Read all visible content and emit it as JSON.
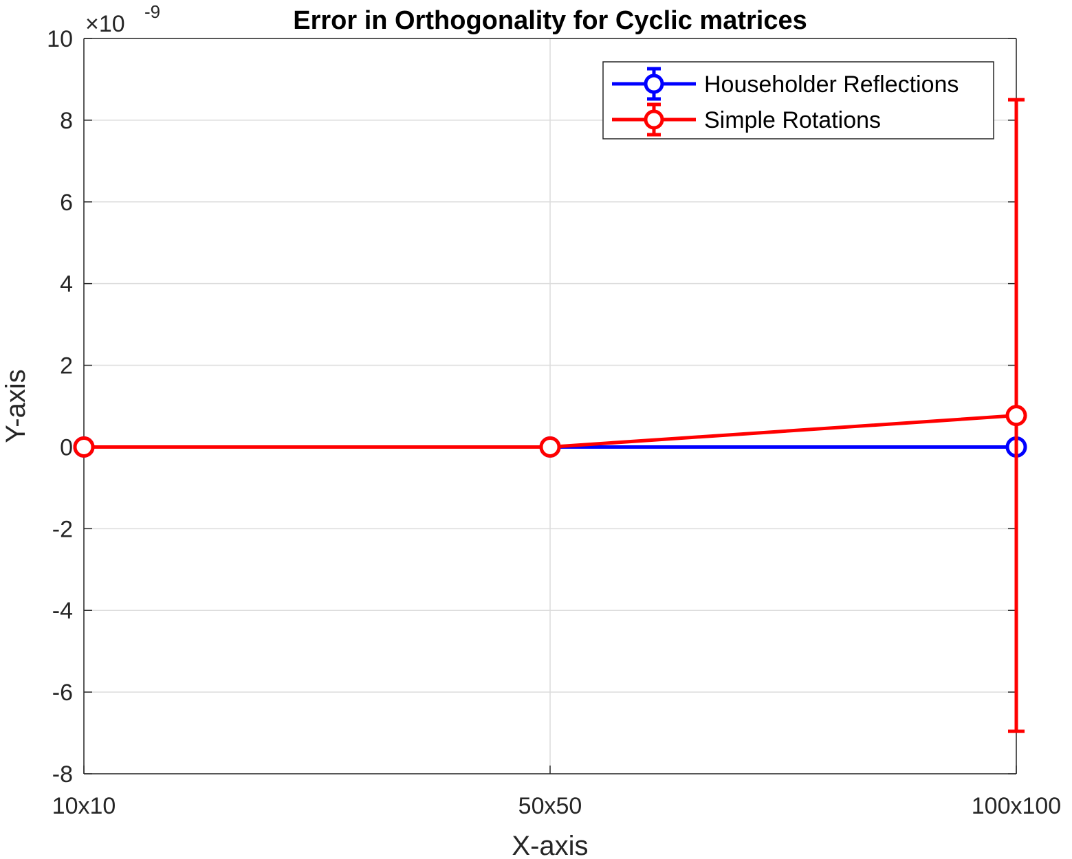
{
  "chart_data": {
    "type": "line",
    "title": "Error in Orthogonality for Cyclic matrices",
    "xlabel": "X-axis",
    "ylabel": "Y-axis",
    "categories": [
      "10x10",
      "50x50",
      "100x100"
    ],
    "y_exponent_label": {
      "base": "×10",
      "exp": "-9"
    },
    "y_multiplier": 1e-09,
    "ylim": [
      -8,
      10
    ],
    "yticks": [
      "-8",
      "-6",
      "-4",
      "-2",
      "0",
      "2",
      "4",
      "6",
      "8",
      "10"
    ],
    "grid": true,
    "legend_position": "top-right",
    "series": [
      {
        "name": "Householder Reflections",
        "color": "#0000ff",
        "values": [
          0,
          0,
          0
        ],
        "errors": [
          0,
          0,
          0
        ]
      },
      {
        "name": "Simple Rotations",
        "color": "#ff0000",
        "values": [
          0,
          0,
          0.77
        ],
        "errors": [
          0,
          0,
          7.73
        ]
      }
    ]
  }
}
